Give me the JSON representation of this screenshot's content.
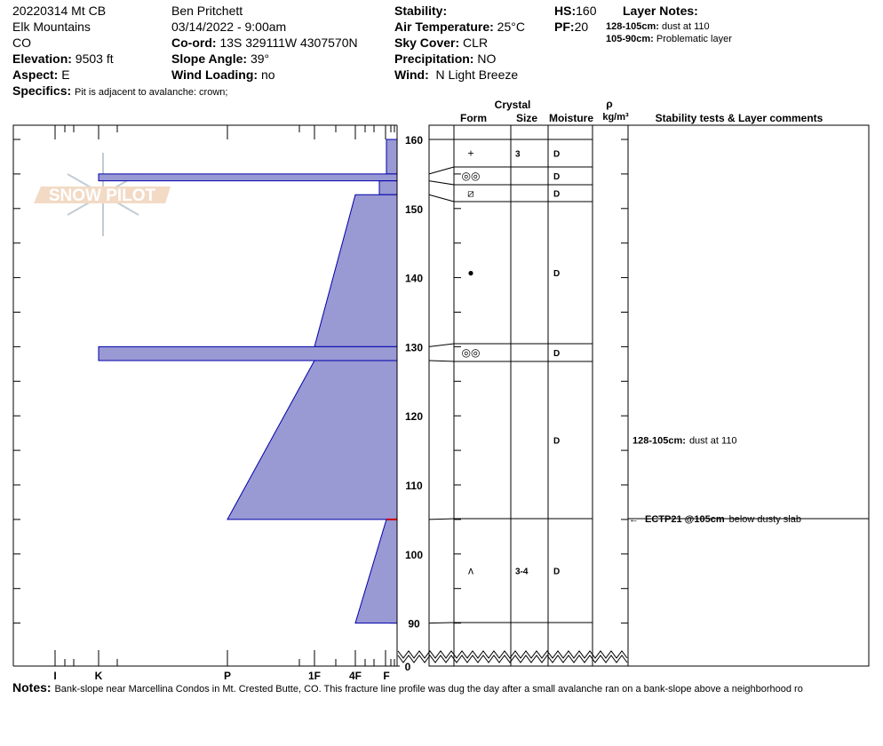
{
  "header": {
    "col1": [
      "20220314 Mt CB",
      "Elk Mountains",
      "CO"
    ],
    "elevation_label": "Elevation:",
    "elevation": "9503 ft",
    "aspect_label": "Aspect:",
    "aspect": "E",
    "observer": "Ben Pritchett",
    "datetime": "03/14/2022 - 9:00am",
    "coord_label": "Co-ord:",
    "coord": "13S 329111W 4307570N",
    "slope_label": "Slope Angle:",
    "slope": "39°",
    "wind_loading_label": "Wind Loading:",
    "wind_loading": "no",
    "stability_label": "Stability:",
    "air_temp_label": "Air Temperature:",
    "air_temp": "25°C",
    "sky_label": "Sky Cover:",
    "sky": "CLR",
    "precip_label": "Precipitation:",
    "precip": "NO",
    "wind_label": "Wind:",
    "wind": "N Light Breeze",
    "hs_label": "HS:",
    "hs": "160",
    "pf_label": "PF:",
    "pf": "20",
    "layer_notes_label": "Layer Notes:",
    "layer_notes": [
      {
        "range": "128-105cm:",
        "text": "dust at 110"
      },
      {
        "range": "105-90cm:",
        "text": "Problematic layer"
      }
    ],
    "specifics_label": "Specifics:",
    "specifics": "Pit is adjacent to avalanche: crown;"
  },
  "logo": "SNOW PILOT",
  "table_headers": {
    "crystal": "Crystal",
    "form": "Form",
    "size": "Size",
    "moisture": "Moisture",
    "rho": "ρ",
    "density": "kg/m³",
    "comments": "Stability tests & Layer comments"
  },
  "depth_ticks": [
    "160",
    "150",
    "140",
    "130",
    "120",
    "110",
    "100",
    "90",
    "0"
  ],
  "hardness_ticks": [
    "I",
    "K",
    "P",
    "1F",
    "4F",
    "F"
  ],
  "layers": [
    {
      "top": 160,
      "bottom": 155,
      "h_top": "F",
      "h_bot": "F",
      "form": "+",
      "size": "3",
      "moisture": "D"
    },
    {
      "top": 155,
      "bottom": 154,
      "h_top": "K",
      "h_bot": "K",
      "form": "◎◎",
      "size": "",
      "moisture": "D"
    },
    {
      "top": 154,
      "bottom": 152,
      "h_top": "F+",
      "h_bot": "F+",
      "form": "⧄",
      "size": "",
      "moisture": "D"
    },
    {
      "top": 152,
      "bottom": 130,
      "h_top": "4F",
      "h_bot": "1F",
      "form": "●",
      "size": "",
      "moisture": "D"
    },
    {
      "top": 130,
      "bottom": 128,
      "h_top": "K",
      "h_bot": "K",
      "form": "◎◎",
      "size": "",
      "moisture": "D"
    },
    {
      "top": 128,
      "bottom": 105,
      "h_top": "1F",
      "h_bot": "P",
      "form": "",
      "size": "",
      "moisture": "D",
      "comment": "128-105cm:",
      "comment_text": "dust at 110"
    },
    {
      "top": 105,
      "bottom": 90,
      "h_top": "F",
      "h_bot": "4F",
      "form": "ʌ",
      "size": "3-4",
      "moisture": "D"
    }
  ],
  "stability_test": {
    "label": "ECTP21 @105cm",
    "text": "below dusty slab",
    "depth": 105
  },
  "notes_label": "Notes:",
  "notes": "Bank-slope near Marcellina Condos in Mt. Crested Butte, CO. This fracture line profile was dug the day after a small avalanche ran on a bank-slope above a neighborhood ro",
  "colors": {
    "layer_fill": "#9999d4",
    "layer_stroke": "#0000aa",
    "weak_layer": "#cc0000"
  }
}
